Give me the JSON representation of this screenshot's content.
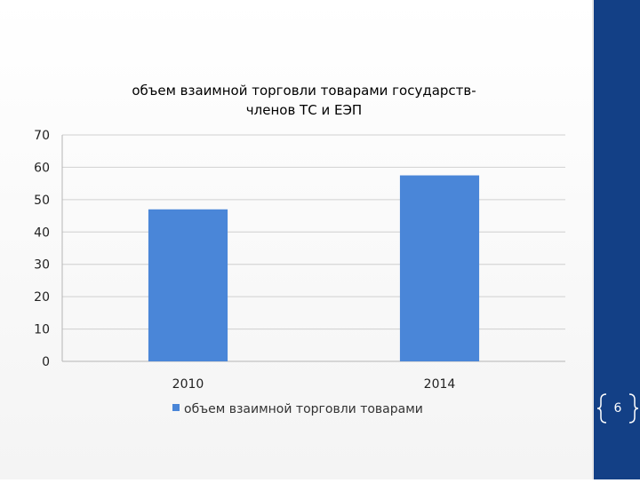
{
  "slide": {
    "page_number": "6"
  },
  "colors": {
    "bar": "#4a86d8",
    "grid": "#d0d0d0",
    "axis": "#b5b5b5",
    "accent": "#134086"
  },
  "chart_data": {
    "type": "bar",
    "title_lines": [
      "объем взаимной торговли товарами государств-",
      "членов ТС и ЕЭП"
    ],
    "categories": [
      "2010",
      "2014"
    ],
    "series": [
      {
        "name": "объем взаимной торговли товарами",
        "values": [
          47,
          57.5
        ]
      }
    ],
    "ylim": [
      0,
      70
    ],
    "yticks": [
      "0",
      "10",
      "20",
      "30",
      "40",
      "50",
      "60",
      "70"
    ],
    "grid": true,
    "legend": "bottom"
  }
}
